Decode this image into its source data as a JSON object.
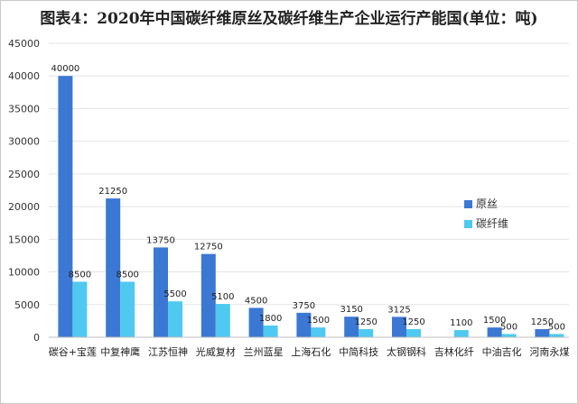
{
  "chart_data": {
    "type": "bar",
    "title": "图表4：2020年中国碳纤维原丝及碳纤维生产企业运行产能国(单位：吨)",
    "categories": [
      "碳谷+宝莲",
      "中复神鹰",
      "江苏恒神",
      "光威复材",
      "兰州蓝星",
      "上海石化",
      "中简科技",
      "太钢钢科",
      "吉林化纤",
      "中油吉化",
      "河南永煤"
    ],
    "series": [
      {
        "name": "原丝",
        "color": "#3b78d4",
        "values": [
          40000,
          21250,
          13750,
          12750,
          4500,
          3750,
          3150,
          3125,
          null,
          1500,
          1250
        ],
        "labels": [
          "40000",
          "21250",
          "13750",
          "12750",
          "4500",
          "3750",
          "3150",
          "3125",
          "",
          "1500",
          "1250"
        ]
      },
      {
        "name": "碳纤维",
        "color": "#4fc9f0",
        "values": [
          8500,
          8500,
          5500,
          5100,
          1800,
          1500,
          1250,
          1250,
          1100,
          500,
          500
        ],
        "labels": [
          "8500",
          "8500",
          "5500",
          "5100",
          "1800",
          "1500",
          "1250",
          "1250",
          "1100",
          "500",
          "500"
        ]
      }
    ],
    "ylim": [
      0,
      45000
    ],
    "yticks": [
      0,
      5000,
      10000,
      15000,
      20000,
      25000,
      30000,
      35000,
      40000,
      45000
    ],
    "grid": true,
    "legend_position": "right"
  }
}
